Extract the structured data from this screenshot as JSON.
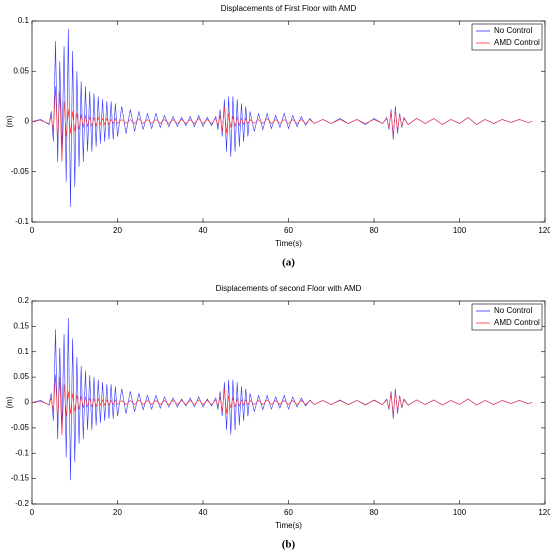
{
  "chart_data": [
    {
      "type": "line",
      "title": "Displacements of First Floor with AMD",
      "x_label": "Time(s)",
      "y_label": "(m)",
      "caption": "(a)",
      "legend": "upper right",
      "grid": false,
      "xlim": [
        0,
        120
      ],
      "xticks": [
        0,
        20,
        40,
        60,
        80,
        100,
        120
      ],
      "ylim": [
        -0.1,
        0.1
      ],
      "yticks": [
        -0.1,
        -0.05,
        0,
        0.05,
        0.1
      ],
      "x": [
        0,
        2,
        4,
        4.5,
        5,
        5.5,
        6,
        6.5,
        7,
        7.5,
        8,
        8.5,
        9,
        9.5,
        10,
        10.5,
        11,
        11.5,
        12,
        12.5,
        13,
        13.5,
        14,
        14.5,
        15,
        15.5,
        16,
        16.5,
        17,
        17.5,
        18,
        18.5,
        19,
        19.5,
        20,
        21,
        22,
        23,
        24,
        25,
        26,
        27,
        28,
        29,
        30,
        31,
        32,
        33,
        34,
        35,
        36,
        37,
        38,
        39,
        40,
        41,
        42,
        43,
        43.5,
        44,
        44.5,
        45,
        45.5,
        46,
        46.5,
        47,
        47.5,
        48,
        48.5,
        49,
        49.5,
        50,
        50.5,
        51,
        52,
        53,
        54,
        55,
        56,
        57,
        58,
        59,
        60,
        61,
        62,
        63,
        64,
        65,
        66,
        68,
        70,
        72,
        74,
        76,
        78,
        80,
        82,
        83,
        83.5,
        84,
        84.5,
        85,
        85.5,
        86,
        86.5,
        87,
        88,
        90,
        92,
        94,
        96,
        98,
        100,
        102,
        104,
        106,
        108,
        110,
        112,
        114,
        116,
        117
      ],
      "series": [
        {
          "name": "No Control",
          "color": "#3333ff",
          "values": [
            0,
            0.002,
            -0.003,
            0.01,
            -0.02,
            0.08,
            -0.04,
            0.06,
            -0.03,
            0.075,
            -0.06,
            0.092,
            -0.085,
            0.07,
            -0.065,
            0.05,
            -0.045,
            0.04,
            -0.04,
            0.035,
            -0.03,
            0.03,
            -0.03,
            0.028,
            -0.025,
            0.025,
            -0.022,
            0.022,
            -0.02,
            0.02,
            -0.018,
            0.02,
            -0.018,
            0.018,
            -0.015,
            0.015,
            -0.012,
            0.012,
            -0.01,
            0.01,
            -0.008,
            0.008,
            -0.007,
            0.008,
            -0.006,
            0.006,
            -0.005,
            0.005,
            -0.005,
            0.004,
            -0.004,
            0.005,
            -0.005,
            0.006,
            -0.005,
            0.004,
            -0.004,
            0.005,
            -0.008,
            0.012,
            -0.015,
            0.022,
            -0.03,
            0.025,
            -0.035,
            0.025,
            -0.03,
            0.022,
            -0.025,
            0.018,
            -0.02,
            0.015,
            -0.015,
            0.01,
            -0.01,
            0.008,
            -0.008,
            0.008,
            -0.007,
            0.006,
            -0.006,
            0.008,
            -0.007,
            0.006,
            -0.005,
            0.005,
            -0.004,
            0.003,
            -0.002,
            0.002,
            -0.002,
            0.003,
            -0.002,
            0.002,
            -0.003,
            0.003,
            -0.002,
            0.004,
            -0.008,
            0.012,
            -0.018,
            0.015,
            -0.012,
            0.008,
            -0.006,
            0.004,
            -0.003,
            0.003,
            -0.002,
            0.003,
            -0.003,
            0.002,
            -0.002,
            0.004,
            -0.003,
            0.002,
            -0.002,
            0.002,
            -0.001,
            0.002,
            -0.001,
            0
          ]
        },
        {
          "name": "AMD Control",
          "color": "#ff3333",
          "values": [
            0,
            0.001,
            -0.002,
            0.005,
            -0.01,
            0.035,
            -0.02,
            0.03,
            -0.04,
            0.02,
            -0.015,
            0.012,
            -0.012,
            0.01,
            -0.01,
            0.008,
            -0.008,
            0.007,
            -0.006,
            0.006,
            -0.005,
            0.005,
            -0.005,
            0.004,
            -0.004,
            0.004,
            -0.003,
            0.003,
            -0.003,
            0.003,
            -0.003,
            0.002,
            -0.002,
            0.003,
            -0.002,
            0.002,
            -0.002,
            0.002,
            -0.002,
            0.003,
            -0.002,
            0.002,
            -0.002,
            0.002,
            -0.002,
            0.002,
            -0.002,
            0.002,
            -0.002,
            0.002,
            -0.002,
            0.002,
            -0.002,
            0.003,
            -0.002,
            0.002,
            -0.002,
            0.003,
            -0.004,
            0.006,
            -0.01,
            0.015,
            -0.012,
            0.008,
            -0.006,
            0.005,
            -0.005,
            0.004,
            -0.004,
            0.003,
            -0.003,
            0.003,
            -0.002,
            0.002,
            -0.002,
            0.002,
            -0.002,
            0.003,
            -0.002,
            0.002,
            -0.002,
            0.002,
            -0.002,
            0.002,
            -0.002,
            0.002,
            -0.002,
            0.002,
            -0.002,
            0.002,
            -0.002,
            0.002,
            -0.002,
            0.002,
            -0.002,
            0.002,
            -0.002,
            0.003,
            -0.006,
            0.01,
            -0.014,
            0.012,
            -0.01,
            0.007,
            -0.005,
            0.003,
            -0.003,
            0.003,
            -0.002,
            0.003,
            -0.003,
            0.002,
            -0.002,
            0.004,
            -0.003,
            0.002,
            -0.002,
            0.002,
            -0.001,
            0.002,
            -0.001,
            0
          ]
        }
      ]
    },
    {
      "type": "line",
      "title": "Displacements of second Floor with AMD",
      "x_label": "Time(s)",
      "y_label": "(m)",
      "caption": "(b)",
      "legend": "upper right",
      "grid": false,
      "xlim": [
        0,
        120
      ],
      "xticks": [
        0,
        20,
        40,
        60,
        80,
        100,
        120
      ],
      "ylim": [
        -0.2,
        0.2
      ],
      "yticks": [
        -0.2,
        -0.15,
        -0.1,
        -0.05,
        0,
        0.05,
        0.1,
        0.15,
        0.2
      ],
      "x": [
        0,
        2,
        4,
        4.5,
        5,
        5.5,
        6,
        6.5,
        7,
        7.5,
        8,
        8.5,
        9,
        9.5,
        10,
        10.5,
        11,
        11.5,
        12,
        12.5,
        13,
        13.5,
        14,
        14.5,
        15,
        15.5,
        16,
        16.5,
        17,
        17.5,
        18,
        18.5,
        19,
        19.5,
        20,
        21,
        22,
        23,
        24,
        25,
        26,
        27,
        28,
        29,
        30,
        31,
        32,
        33,
        34,
        35,
        36,
        37,
        38,
        39,
        40,
        41,
        42,
        43,
        43.5,
        44,
        44.5,
        45,
        45.5,
        46,
        46.5,
        47,
        47.5,
        48,
        48.5,
        49,
        49.5,
        50,
        50.5,
        51,
        52,
        53,
        54,
        55,
        56,
        57,
        58,
        59,
        60,
        61,
        62,
        63,
        64,
        65,
        66,
        68,
        70,
        72,
        74,
        76,
        78,
        80,
        82,
        83,
        83.5,
        84,
        84.5,
        85,
        85.5,
        86,
        86.5,
        87,
        88,
        90,
        92,
        94,
        96,
        98,
        100,
        102,
        104,
        106,
        108,
        110,
        112,
        114,
        116,
        117
      ],
      "series": [
        {
          "name": "No Control",
          "color": "#3333ff",
          "values": [
            0,
            0.004,
            -0.005,
            0.018,
            -0.036,
            0.144,
            -0.072,
            0.108,
            -0.054,
            0.135,
            -0.108,
            0.166,
            -0.153,
            0.126,
            -0.117,
            0.09,
            -0.081,
            0.072,
            -0.072,
            0.063,
            -0.054,
            0.054,
            -0.054,
            0.05,
            -0.045,
            0.045,
            -0.04,
            0.04,
            -0.036,
            0.036,
            -0.032,
            0.036,
            -0.032,
            0.032,
            -0.027,
            0.027,
            -0.022,
            0.022,
            -0.018,
            0.018,
            -0.014,
            0.014,
            -0.013,
            0.014,
            -0.011,
            0.011,
            -0.009,
            0.009,
            -0.009,
            0.007,
            -0.007,
            0.009,
            -0.009,
            0.011,
            -0.009,
            0.007,
            -0.007,
            0.009,
            -0.014,
            0.022,
            -0.027,
            0.04,
            -0.054,
            0.045,
            -0.063,
            0.045,
            -0.054,
            0.04,
            -0.045,
            0.032,
            -0.036,
            0.027,
            -0.027,
            0.018,
            -0.018,
            0.014,
            -0.014,
            0.014,
            -0.013,
            0.011,
            -0.011,
            0.014,
            -0.013,
            0.011,
            -0.009,
            0.009,
            -0.007,
            0.005,
            -0.004,
            0.004,
            -0.004,
            0.005,
            -0.004,
            0.004,
            -0.005,
            0.005,
            -0.004,
            0.007,
            -0.014,
            0.022,
            -0.032,
            0.027,
            -0.022,
            0.014,
            -0.011,
            0.007,
            -0.005,
            0.005,
            -0.004,
            0.005,
            -0.005,
            0.004,
            -0.004,
            0.007,
            -0.005,
            0.004,
            -0.004,
            0.004,
            -0.002,
            0.004,
            -0.002,
            0
          ]
        },
        {
          "name": "AMD Control",
          "color": "#ff3333",
          "values": [
            0,
            0.002,
            -0.004,
            0.009,
            -0.018,
            0.055,
            -0.036,
            0.05,
            -0.065,
            0.036,
            -0.027,
            0.022,
            -0.022,
            0.018,
            -0.018,
            0.014,
            -0.014,
            0.013,
            -0.011,
            0.011,
            -0.009,
            0.009,
            -0.009,
            0.007,
            -0.007,
            0.007,
            -0.005,
            0.005,
            -0.005,
            0.005,
            -0.005,
            0.004,
            -0.004,
            0.005,
            -0.004,
            0.004,
            -0.004,
            0.004,
            -0.004,
            0.005,
            -0.004,
            0.004,
            -0.004,
            0.004,
            -0.004,
            0.004,
            -0.004,
            0.004,
            -0.004,
            0.004,
            -0.004,
            0.004,
            -0.004,
            0.005,
            -0.004,
            0.004,
            -0.004,
            0.005,
            -0.007,
            0.011,
            -0.018,
            0.027,
            -0.022,
            0.014,
            -0.011,
            0.009,
            -0.009,
            0.007,
            -0.007,
            0.005,
            -0.005,
            0.005,
            -0.004,
            0.004,
            -0.004,
            0.004,
            -0.004,
            0.005,
            -0.004,
            0.004,
            -0.004,
            0.004,
            -0.004,
            0.004,
            -0.004,
            0.004,
            -0.004,
            0.004,
            -0.004,
            0.004,
            -0.004,
            0.004,
            -0.004,
            0.004,
            -0.004,
            0.004,
            -0.004,
            0.005,
            -0.011,
            0.018,
            -0.025,
            0.022,
            -0.018,
            0.013,
            -0.009,
            0.005,
            -0.005,
            0.005,
            -0.004,
            0.005,
            -0.005,
            0.004,
            -0.004,
            0.007,
            -0.005,
            0.004,
            -0.004,
            0.004,
            -0.002,
            0.004,
            -0.002,
            0
          ]
        }
      ]
    }
  ]
}
